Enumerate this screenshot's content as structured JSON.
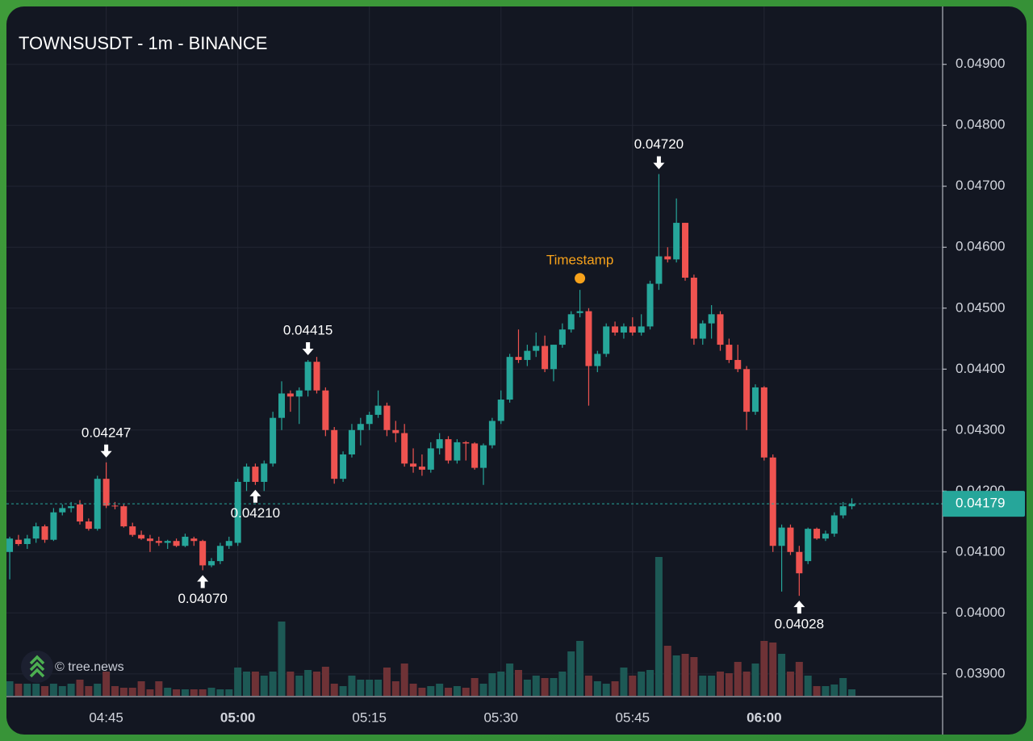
{
  "chart_data": {
    "type": "candlestick",
    "title": "TOWNSUSDT - 1m - BINANCE",
    "watermark": "© tree.news",
    "categories": [
      null,
      null,
      null,
      null,
      null,
      null,
      null,
      null,
      null,
      null,
      null,
      "04:45",
      null,
      null,
      null,
      null,
      null,
      null,
      null,
      null,
      null,
      null,
      null,
      null,
      null,
      null,
      "05:00",
      null,
      null,
      null,
      null,
      null,
      null,
      null,
      null,
      null,
      null,
      null,
      null,
      null,
      null,
      "05:15",
      null,
      null,
      null,
      null,
      null,
      null,
      null,
      null,
      null,
      null,
      null,
      null,
      null,
      null,
      "05:30",
      null,
      null,
      null,
      null,
      null,
      null,
      null,
      null,
      null,
      null,
      null,
      null,
      null,
      null,
      "05:45",
      null,
      null,
      null,
      null,
      null,
      null,
      null,
      null,
      null,
      null,
      null,
      null,
      null,
      null,
      "06:00",
      null,
      null,
      null,
      null,
      null,
      null,
      null,
      null,
      null,
      null
    ],
    "open": [
      0.041,
      0.0412,
      0.04113,
      0.04122,
      0.04142,
      0.0412,
      0.04165,
      0.04172,
      0.04178,
      0.0415,
      0.04138,
      0.0422,
      0.04176,
      0.04175,
      0.04142,
      0.04128,
      0.04122,
      0.04118,
      0.04115,
      0.04118,
      0.0411,
      0.04122,
      0.04118,
      0.04078,
      0.04085,
      0.0411,
      0.04115,
      0.04215,
      0.0424,
      0.04215,
      0.04245,
      0.0432,
      0.0436,
      0.04355,
      0.04365,
      0.04412,
      0.04365,
      0.043,
      0.0422,
      0.0426,
      0.043,
      0.0431,
      0.04325,
      0.0434,
      0.043,
      0.04295,
      0.04245,
      0.0424,
      0.04235,
      0.0427,
      0.04285,
      0.0425,
      0.0428,
      0.04278,
      0.04238,
      0.04275,
      0.04315,
      0.0435,
      0.0442,
      0.04415,
      0.0443,
      0.04438,
      0.044,
      0.0444,
      0.04465,
      0.04492,
      0.04495,
      0.04405,
      0.04425,
      0.0447,
      0.0446,
      0.0447,
      0.0446,
      0.0447,
      0.0454,
      0.04585,
      0.0458,
      0.0464,
      0.0455,
      0.0445,
      0.04475,
      0.0449,
      0.0444,
      0.04415,
      0.044,
      0.0433,
      0.0437,
      0.04255,
      0.0411,
      0.0414,
      0.041,
      0.04085,
      0.04138,
      0.04122,
      0.0413,
      0.0416,
      0.04175
    ],
    "high": [
      0.04125,
      0.04128,
      0.04128,
      0.04148,
      0.04145,
      0.04172,
      0.04178,
      0.04182,
      0.04185,
      0.04155,
      0.04225,
      0.04247,
      0.04182,
      0.04178,
      0.04148,
      0.04135,
      0.04128,
      0.04125,
      0.0412,
      0.04122,
      0.0413,
      0.04125,
      0.0412,
      0.0409,
      0.04115,
      0.04125,
      0.0422,
      0.04245,
      0.04245,
      0.0425,
      0.0433,
      0.0438,
      0.04365,
      0.0437,
      0.04415,
      0.0442,
      0.0437,
      0.04305,
      0.04265,
      0.0431,
      0.0432,
      0.0433,
      0.04365,
      0.04345,
      0.04315,
      0.0431,
      0.0427,
      0.0426,
      0.0428,
      0.04295,
      0.0429,
      0.04285,
      0.04282,
      0.0428,
      0.04278,
      0.0432,
      0.04365,
      0.04425,
      0.04465,
      0.0444,
      0.0446,
      0.04455,
      0.0444,
      0.04475,
      0.04495,
      0.0453,
      0.045,
      0.0443,
      0.04475,
      0.04478,
      0.04475,
      0.04485,
      0.0449,
      0.04545,
      0.0472,
      0.046,
      0.0468,
      0.0464,
      0.04555,
      0.0448,
      0.04505,
      0.04495,
      0.0445,
      0.0444,
      0.04405,
      0.04375,
      0.04372,
      0.0426,
      0.04145,
      0.04145,
      0.0411,
      0.0414,
      0.0414,
      0.04135,
      0.04165,
      0.04182,
      0.04188
    ],
    "low": [
      0.04055,
      0.0411,
      0.04105,
      0.04115,
      0.04115,
      0.04118,
      0.0416,
      0.04165,
      0.04145,
      0.04135,
      0.04135,
      0.04172,
      0.0417,
      0.0414,
      0.04125,
      0.0412,
      0.041,
      0.0411,
      0.04105,
      0.04108,
      0.04108,
      0.0411,
      0.0407,
      0.04075,
      0.0408,
      0.04105,
      0.0411,
      0.042,
      0.0421,
      0.042,
      0.0424,
      0.043,
      0.0433,
      0.0431,
      0.04355,
      0.0436,
      0.0429,
      0.04212,
      0.04215,
      0.04255,
      0.04275,
      0.043,
      0.0432,
      0.0429,
      0.0428,
      0.0424,
      0.0423,
      0.04225,
      0.0423,
      0.0426,
      0.04245,
      0.04245,
      0.0425,
      0.04235,
      0.0421,
      0.0427,
      0.0431,
      0.04345,
      0.0441,
      0.04405,
      0.0442,
      0.04395,
      0.0438,
      0.04435,
      0.0446,
      0.04485,
      0.0434,
      0.04395,
      0.0442,
      0.04455,
      0.0445,
      0.04455,
      0.04455,
      0.04465,
      0.0453,
      0.04575,
      0.04575,
      0.04545,
      0.0444,
      0.0444,
      0.0445,
      0.0443,
      0.0441,
      0.04395,
      0.043,
      0.04325,
      0.0425,
      0.041,
      0.04035,
      0.04095,
      0.04028,
      0.0408,
      0.0412,
      0.04118,
      0.04125,
      0.04155,
      0.0417
    ],
    "close": [
      0.04122,
      0.04113,
      0.04122,
      0.04142,
      0.0412,
      0.04165,
      0.04172,
      0.04175,
      0.0415,
      0.04138,
      0.0422,
      0.04176,
      0.04175,
      0.04142,
      0.04128,
      0.04122,
      0.04118,
      0.04115,
      0.04118,
      0.0411,
      0.04125,
      0.04118,
      0.04078,
      0.04085,
      0.0411,
      0.04118,
      0.04215,
      0.0424,
      0.04215,
      0.04245,
      0.0432,
      0.0436,
      0.04355,
      0.04365,
      0.04412,
      0.04365,
      0.043,
      0.0422,
      0.0426,
      0.043,
      0.0431,
      0.04325,
      0.0434,
      0.043,
      0.04295,
      0.04245,
      0.0424,
      0.04235,
      0.0427,
      0.04285,
      0.0425,
      0.0428,
      0.04278,
      0.04238,
      0.04275,
      0.04315,
      0.0435,
      0.0442,
      0.04415,
      0.0443,
      0.04438,
      0.044,
      0.0444,
      0.04465,
      0.0449,
      0.04495,
      0.04405,
      0.04425,
      0.0447,
      0.0446,
      0.0447,
      0.0446,
      0.0447,
      0.0454,
      0.04585,
      0.0458,
      0.0464,
      0.0455,
      0.0445,
      0.04475,
      0.0449,
      0.0444,
      0.04415,
      0.044,
      0.0433,
      0.0437,
      0.04255,
      0.0411,
      0.0414,
      0.041,
      0.04065,
      0.04138,
      0.04122,
      0.0413,
      0.0416,
      0.04175,
      0.04179
    ],
    "volume": [
      18,
      15,
      15,
      15,
      12,
      15,
      12,
      15,
      20,
      12,
      15,
      30,
      12,
      10,
      10,
      18,
      8,
      18,
      10,
      8,
      8,
      8,
      8,
      10,
      8,
      8,
      35,
      30,
      30,
      25,
      30,
      92,
      30,
      25,
      32,
      30,
      36,
      15,
      12,
      25,
      20,
      20,
      20,
      35,
      18,
      40,
      15,
      10,
      12,
      15,
      10,
      12,
      10,
      22,
      15,
      28,
      30,
      40,
      32,
      20,
      25,
      22,
      22,
      30,
      55,
      68,
      25,
      18,
      15,
      18,
      35,
      25,
      30,
      32,
      172,
      62,
      50,
      52,
      48,
      25,
      25,
      30,
      28,
      42,
      30,
      40,
      68,
      66,
      52,
      30,
      42,
      25,
      12,
      12,
      14,
      22,
      8
    ],
    "up_color": "#26a69a",
    "down_color": "#ef5350",
    "volume_up_color": "#1d5955",
    "volume_down_color": "#6e3236",
    "ylim": [
      0.03864,
      0.04995
    ],
    "y2lim": [
      0,
      854
    ],
    "yticks": [
      {
        "value": 0.039,
        "label": "0.03900"
      },
      {
        "value": 0.04,
        "label": "0.04000"
      },
      {
        "value": 0.041,
        "label": "0.04100"
      },
      {
        "value": 0.042,
        "label": "0.04200"
      },
      {
        "value": 0.043,
        "label": "0.04300"
      },
      {
        "value": 0.044,
        "label": "0.04400"
      },
      {
        "value": 0.045,
        "label": "0.04500"
      },
      {
        "value": 0.046,
        "label": "0.04600"
      },
      {
        "value": 0.047,
        "label": "0.04700"
      },
      {
        "value": 0.048,
        "label": "0.04800"
      },
      {
        "value": 0.049,
        "label": "0.04900"
      }
    ],
    "grid": true,
    "annotations": [
      {
        "value": 0.04247,
        "label": "0.04247"
      },
      {
        "value": 0.0407,
        "label": "0.04070"
      },
      {
        "value": 0.04415,
        "label": "0.04415"
      },
      {
        "value": 0.0421,
        "label": "0.04210"
      },
      {
        "value": 0.0472,
        "label": "0.04720"
      },
      {
        "value": 0.04028,
        "label": "0.04028"
      }
    ],
    "timestamp": {
      "label": "Timestamp",
      "value": 0.04549,
      "index": 65,
      "color": "#f7a21b"
    },
    "last_price": {
      "value": 0.04179,
      "label": "0.04179",
      "color": "#26a69a"
    }
  }
}
